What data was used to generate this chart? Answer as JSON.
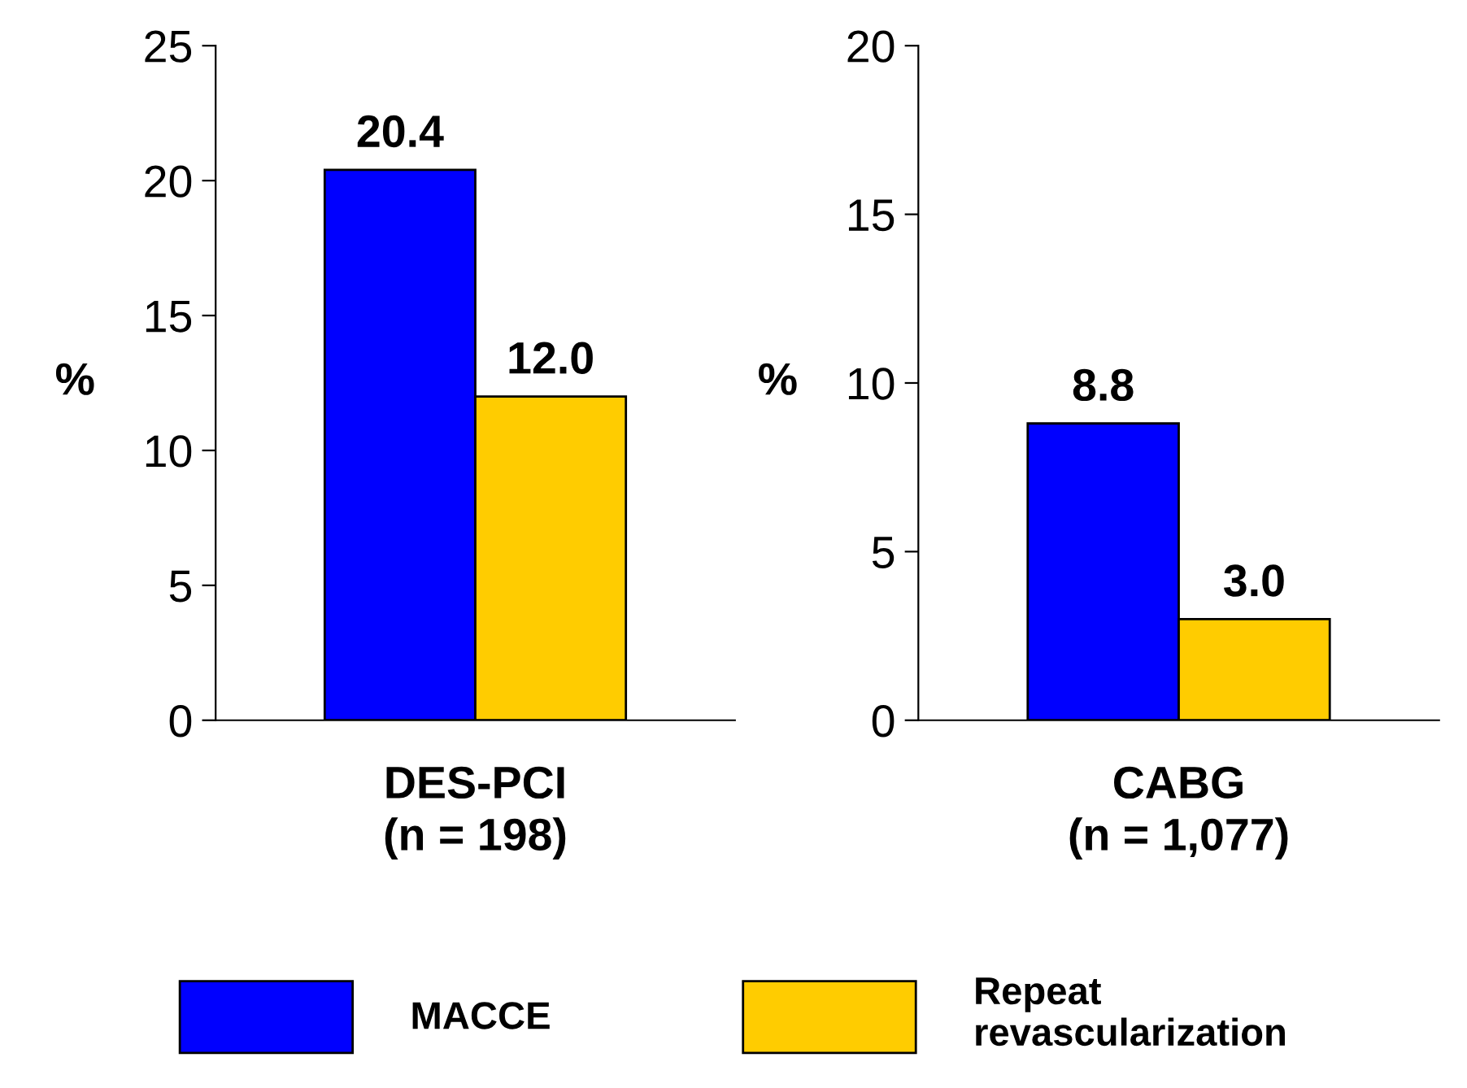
{
  "chart_data": [
    {
      "type": "bar",
      "categories": [
        "DES-PCI\n(n = 198)"
      ],
      "ylabel": "%",
      "series": [
        {
          "name": "MACCE",
          "color": "#0000ff",
          "values": [
            20.4
          ],
          "value_labels": [
            "20.4"
          ]
        },
        {
          "name": "Repeat\nrevascularization",
          "color": "#ffcc00",
          "values": [
            12
          ],
          "value_labels": [
            "12.0"
          ]
        }
      ],
      "ylim": [
        0,
        25
      ],
      "yticks": [
        0,
        5,
        10,
        15,
        20,
        25
      ],
      "grid": false,
      "legend": "bottom"
    },
    {
      "type": "bar",
      "categories": [
        "CABG\n(n = 1,077)"
      ],
      "ylabel": "%",
      "series": [
        {
          "color": "#0000ff",
          "values": [
            8.8
          ],
          "value_labels": [
            "8.8"
          ]
        },
        {
          "color": "#ffcc00",
          "values": [
            3
          ],
          "value_labels": [
            "3.0"
          ]
        }
      ],
      "ylim": [
        0,
        20
      ],
      "yticks": [
        0,
        5,
        10,
        15,
        20
      ],
      "grid": false
    }
  ]
}
